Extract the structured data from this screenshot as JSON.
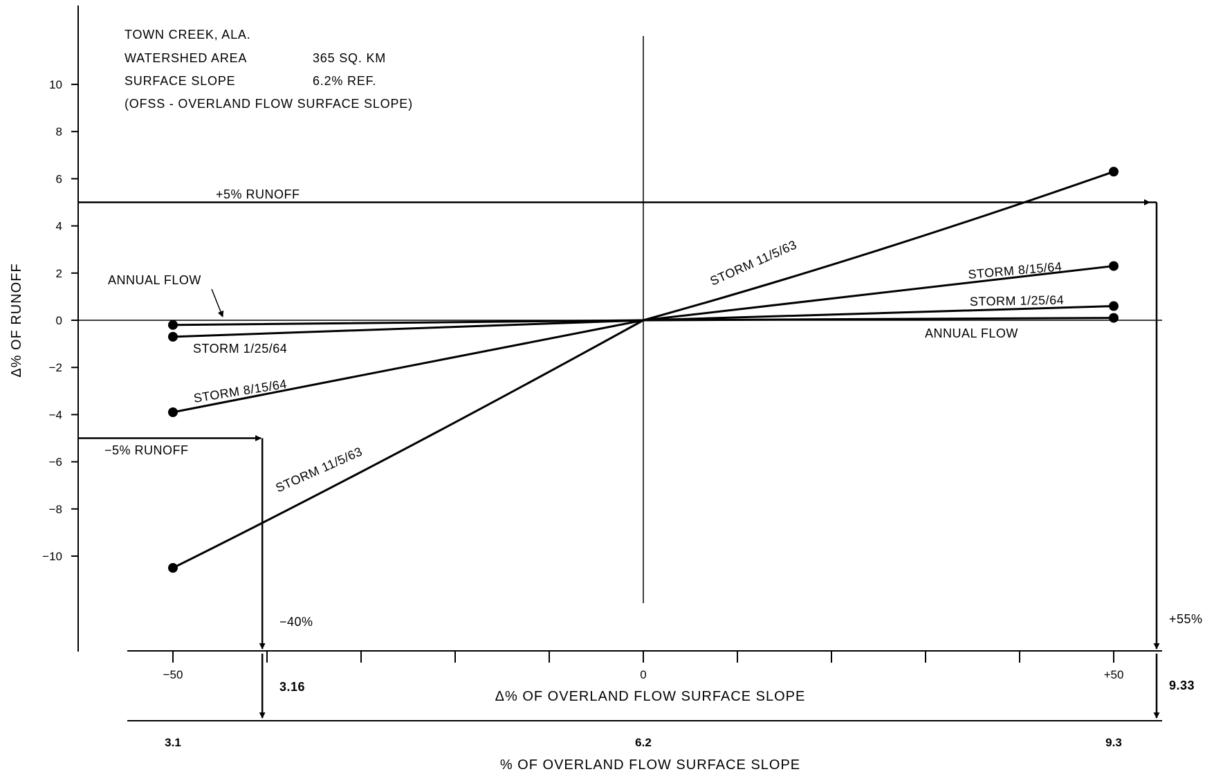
{
  "chart_data": {
    "type": "line",
    "info": {
      "line1": "TOWN CREEK, ALA.",
      "line2_label": "WATERSHED AREA",
      "line2_value": "365 SQ. KM",
      "line3_label": "SURFACE SLOPE",
      "line3_value": "6.2% REF.",
      "line4": "(OFSS - OVERLAND FLOW SURFACE SLOPE)"
    },
    "ylabel": "Δ% OF RUNOFF",
    "xlabel": "Δ% OF OVERLAND FLOW SURFACE SLOPE",
    "xlabel2": "% OF OVERLAND FLOW SURFACE SLOPE",
    "y_ticks": [
      "10",
      "8",
      "6",
      "4",
      "2",
      "0",
      "−2",
      "−4",
      "−6",
      "−8",
      "−10"
    ],
    "x_tick_labels": [
      "−50",
      "0",
      "+50"
    ],
    "x2_tick_labels": [
      "3.1",
      "6.2",
      "9.3"
    ],
    "xlim": [
      -50,
      55
    ],
    "ylim": [
      -13.5,
      13.5
    ],
    "series": [
      {
        "name": "STORM 11/5/63",
        "x": [
          -50,
          0,
          50
        ],
        "y": [
          -10.5,
          0,
          6.3
        ]
      },
      {
        "name": "STORM 8/15/64",
        "x": [
          -50,
          0,
          50
        ],
        "y": [
          -3.9,
          0,
          2.3
        ]
      },
      {
        "name": "STORM 1/25/64",
        "x": [
          -50,
          0,
          50
        ],
        "y": [
          -0.7,
          0,
          0.6
        ]
      },
      {
        "name": "ANNUAL FLOW",
        "x": [
          -50,
          0,
          50
        ],
        "y": [
          -0.2,
          0,
          0.1
        ]
      }
    ],
    "series_labels": {
      "storm_11_5_63": "STORM 11/5/63",
      "storm_8_15_64": "STORM 8/15/64",
      "storm_1_25_64": "STORM 1/25/64",
      "annual_flow": "ANNUAL FLOW"
    },
    "annotations": {
      "plus5_runoff": "+5% RUNOFF",
      "minus5_runoff": "−5% RUNOFF",
      "minus40": "−40%",
      "plus55": "+55%",
      "value_3_16": "3.16",
      "value_9_33": "9.33"
    },
    "grid": false
  }
}
